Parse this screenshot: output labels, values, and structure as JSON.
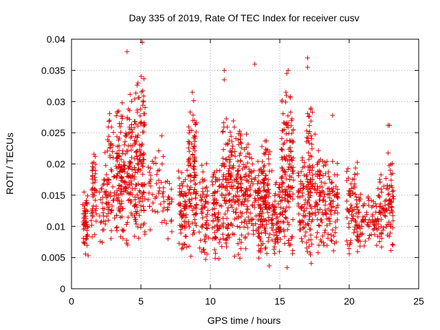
{
  "chart_data": {
    "type": "scatter",
    "title": "Day 335 of 2019, Rate Of TEC Index for receiver cusv",
    "xlabel": "GPS time / hours",
    "ylabel": "ROTI / TECUs",
    "xlim": [
      0,
      25
    ],
    "ylim": [
      0,
      0.04
    ],
    "x_ticks": [
      "0",
      "5",
      "10",
      "15",
      "20",
      "25"
    ],
    "y_ticks": [
      "0",
      "0.005",
      "0.01",
      "0.015",
      "0.02",
      "0.025",
      "0.03",
      "0.035",
      "0.04"
    ],
    "grid": true,
    "marker": "plus",
    "color": "#e00000",
    "series": [
      {
        "name": "ROTI",
        "clusters": [
          {
            "x": [
              0.8,
              1.2
            ],
            "y": [
              0.005,
              0.017
            ],
            "n": 55
          },
          {
            "x": [
              1.4,
              1.8
            ],
            "y": [
              0.007,
              0.023
            ],
            "n": 45
          },
          {
            "x": [
              2.0,
              2.5
            ],
            "y": [
              0.006,
              0.025
            ],
            "n": 30
          },
          {
            "x": [
              2.5,
              3.1
            ],
            "y": [
              0.006,
              0.03
            ],
            "n": 60
          },
          {
            "x": [
              3.2,
              3.9
            ],
            "y": [
              0.007,
              0.03
            ],
            "n": 110
          },
          {
            "x": [
              3.9,
              4.4
            ],
            "y": [
              0.006,
              0.034
            ],
            "n": 70
          },
          {
            "x": [
              4.5,
              5.3
            ],
            "y": [
              0.005,
              0.037
            ],
            "n": 140
          },
          {
            "x": [
              5.5,
              6.5
            ],
            "y": [
              0.008,
              0.024
            ],
            "n": 35
          },
          {
            "x": [
              6.5,
              7.3
            ],
            "y": [
              0.007,
              0.022
            ],
            "n": 30
          },
          {
            "x": [
              7.7,
              8.4
            ],
            "y": [
              0.004,
              0.02
            ],
            "n": 70
          },
          {
            "x": [
              8.4,
              9.0
            ],
            "y": [
              0.004,
              0.031
            ],
            "n": 100
          },
          {
            "x": [
              9.2,
              9.9
            ],
            "y": [
              0.004,
              0.022
            ],
            "n": 60
          },
          {
            "x": [
              10.1,
              10.7
            ],
            "y": [
              0.004,
              0.021
            ],
            "n": 70
          },
          {
            "x": [
              10.8,
              11.7
            ],
            "y": [
              0.004,
              0.03
            ],
            "n": 120
          },
          {
            "x": [
              11.7,
              12.6
            ],
            "y": [
              0.004,
              0.027
            ],
            "n": 110
          },
          {
            "x": [
              12.6,
              13.3
            ],
            "y": [
              0.005,
              0.024
            ],
            "n": 60
          },
          {
            "x": [
              13.4,
              14.3
            ],
            "y": [
              0.003,
              0.025
            ],
            "n": 150
          },
          {
            "x": [
              14.4,
              15.1
            ],
            "y": [
              0.004,
              0.02
            ],
            "n": 70
          },
          {
            "x": [
              15.1,
              16.0
            ],
            "y": [
              0.003,
              0.033
            ],
            "n": 150
          },
          {
            "x": [
              16.3,
              16.9
            ],
            "y": [
              0.005,
              0.022
            ],
            "n": 55
          },
          {
            "x": [
              16.9,
              17.4
            ],
            "y": [
              0.003,
              0.031
            ],
            "n": 90
          },
          {
            "x": [
              17.5,
              18.3
            ],
            "y": [
              0.005,
              0.025
            ],
            "n": 80
          },
          {
            "x": [
              18.3,
              19.2
            ],
            "y": [
              0.005,
              0.022
            ],
            "n": 70
          },
          {
            "x": [
              19.8,
              20.6
            ],
            "y": [
              0.005,
              0.021
            ],
            "n": 70
          },
          {
            "x": [
              20.6,
              21.4
            ],
            "y": [
              0.006,
              0.016
            ],
            "n": 45
          },
          {
            "x": [
              21.4,
              22.0
            ],
            "y": [
              0.006,
              0.015
            ],
            "n": 30
          },
          {
            "x": [
              22.0,
              22.6
            ],
            "y": [
              0.005,
              0.02
            ],
            "n": 45
          },
          {
            "x": [
              22.6,
              23.2
            ],
            "y": [
              0.005,
              0.022
            ],
            "n": 60
          }
        ],
        "extra_points": [
          [
            4.0,
            0.038
          ],
          [
            5.1,
            0.0395
          ],
          [
            6.5,
            0.0245
          ],
          [
            8.7,
            0.0315
          ],
          [
            11.0,
            0.035
          ],
          [
            11.0,
            0.0335
          ],
          [
            13.2,
            0.036
          ],
          [
            15.6,
            0.035
          ],
          [
            15.5,
            0.0345
          ],
          [
            17.0,
            0.037
          ],
          [
            17.0,
            0.0355
          ],
          [
            18.8,
            0.0278
          ],
          [
            22.8,
            0.0262
          ],
          [
            22.9,
            0.0262
          ],
          [
            9.0,
            0.0135
          ],
          [
            19.0,
            0.009
          ]
        ]
      }
    ]
  }
}
